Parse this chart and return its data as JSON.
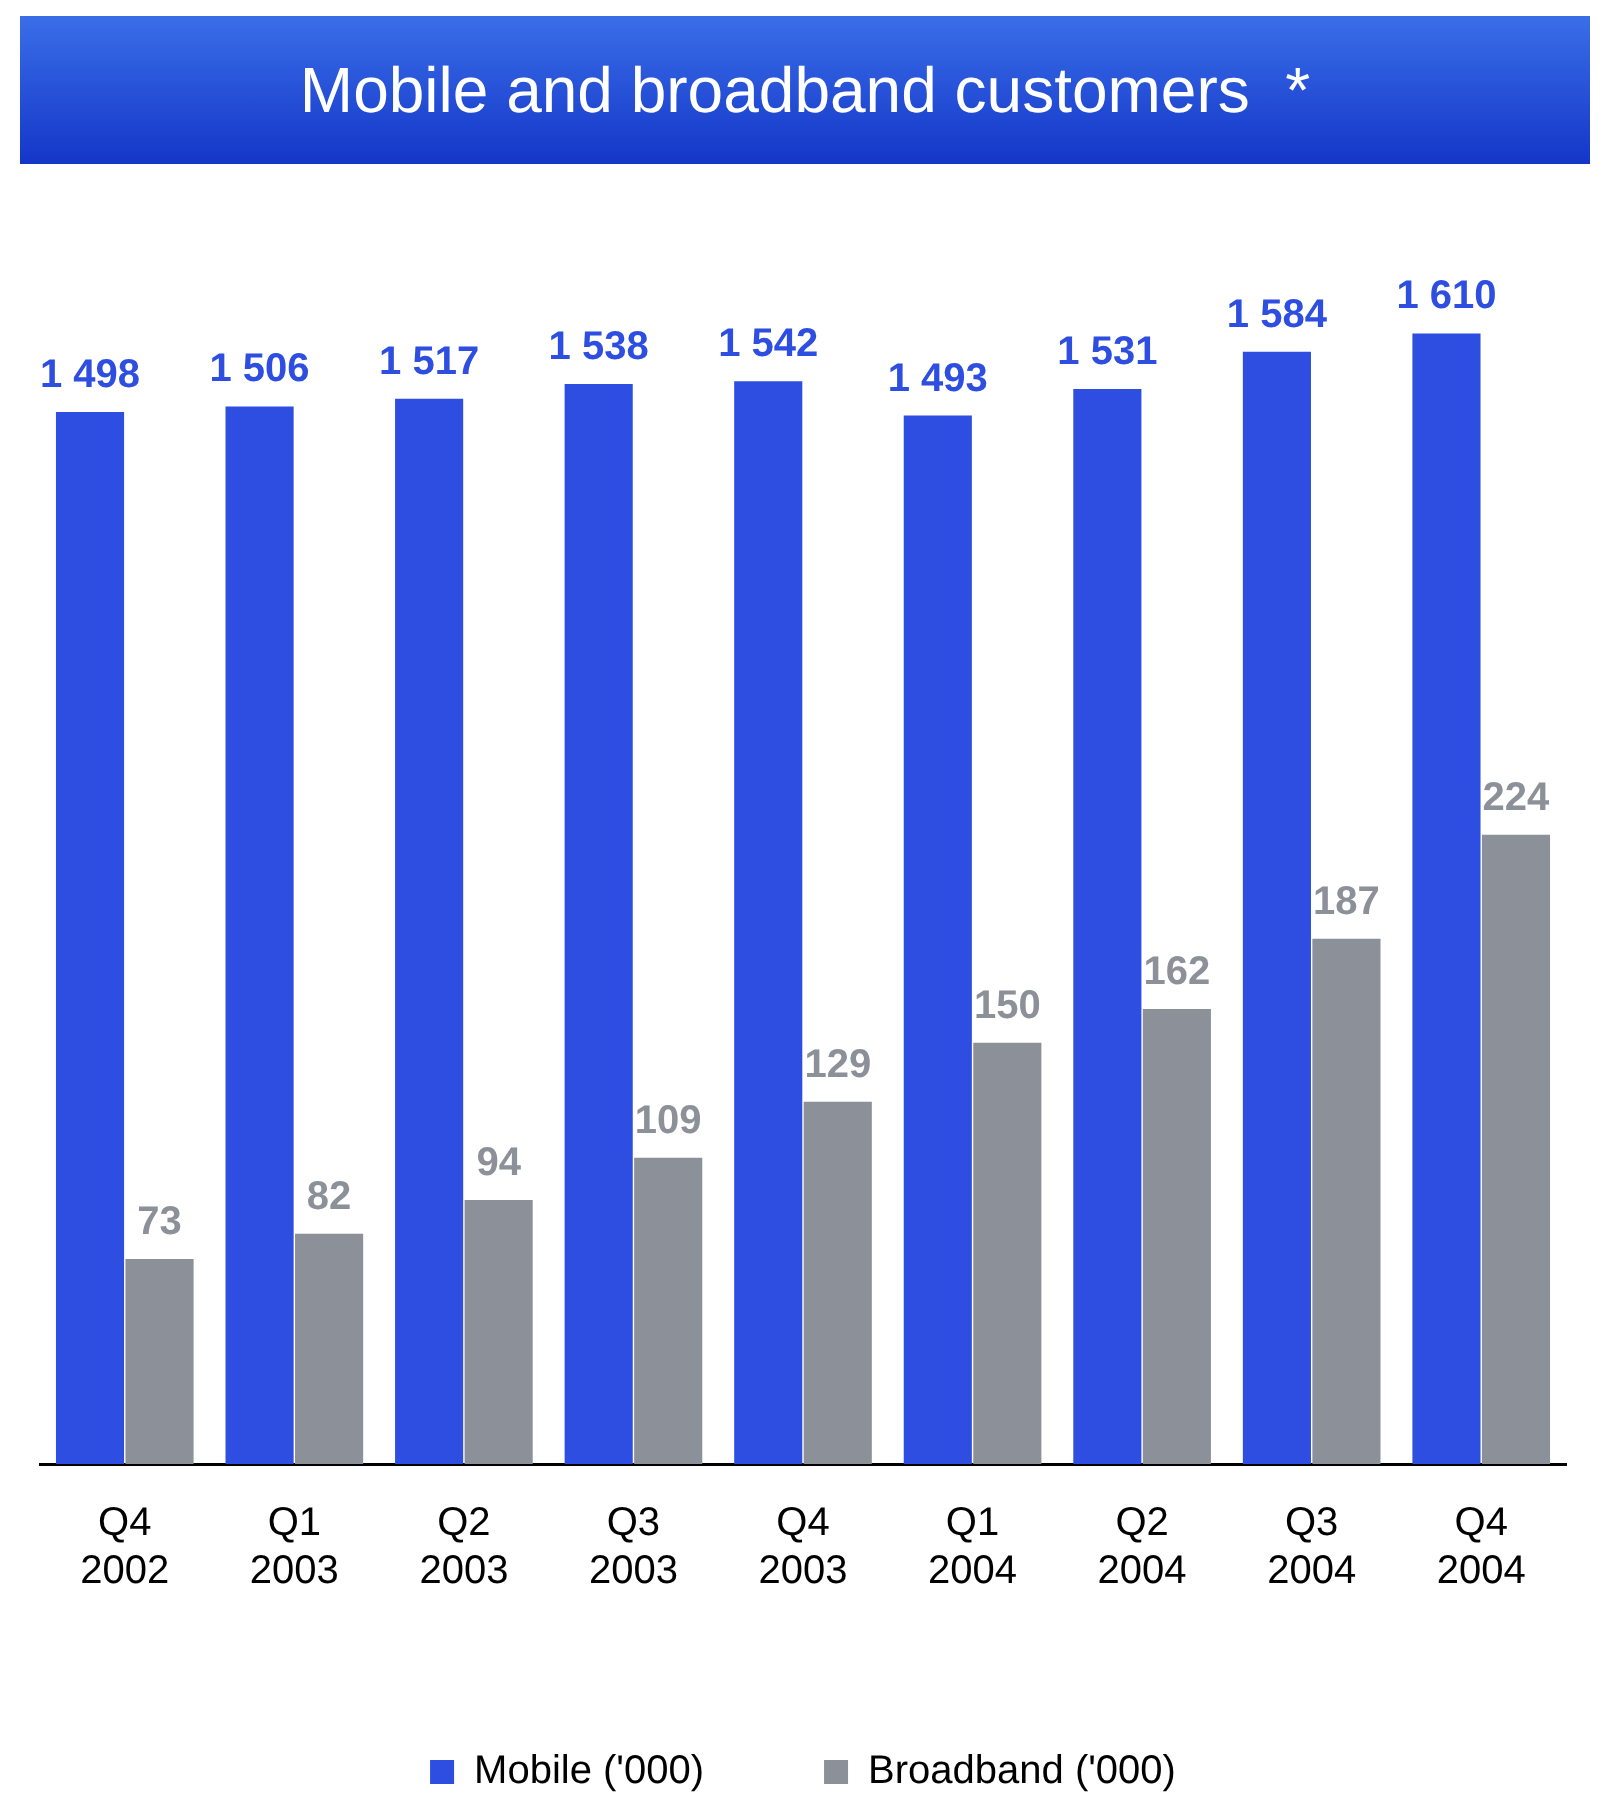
{
  "chart_data": {
    "type": "bar",
    "title": "Mobile and broadband customers  *",
    "categories": [
      "Q4\n2002",
      "Q1\n2003",
      "Q2\n2003",
      "Q3\n2003",
      "Q4\n2003",
      "Q1\n2004",
      "Q2\n2004",
      "Q3\n2004",
      "Q4\n2004"
    ],
    "series": [
      {
        "name": "Mobile ('000)",
        "color": "#2d4ee0",
        "values": [
          1498,
          1506,
          1517,
          1538,
          1542,
          1493,
          1531,
          1584,
          1610
        ],
        "value_labels": [
          "1 498",
          "1 506",
          "1 517",
          "1 538",
          "1 542",
          "1 493",
          "1 531",
          "1 584",
          "1 610"
        ]
      },
      {
        "name": "Broadband ('000)",
        "color": "#8c9099",
        "axis": "y2",
        "values": [
          73,
          82,
          94,
          109,
          129,
          150,
          162,
          187,
          224
        ],
        "value_labels": [
          "73",
          "82",
          "94",
          "109",
          "129",
          "150",
          "162",
          "187",
          "224"
        ]
      }
    ],
    "tick_labels": "x",
    "grid": false,
    "legend": "bottom"
  }
}
